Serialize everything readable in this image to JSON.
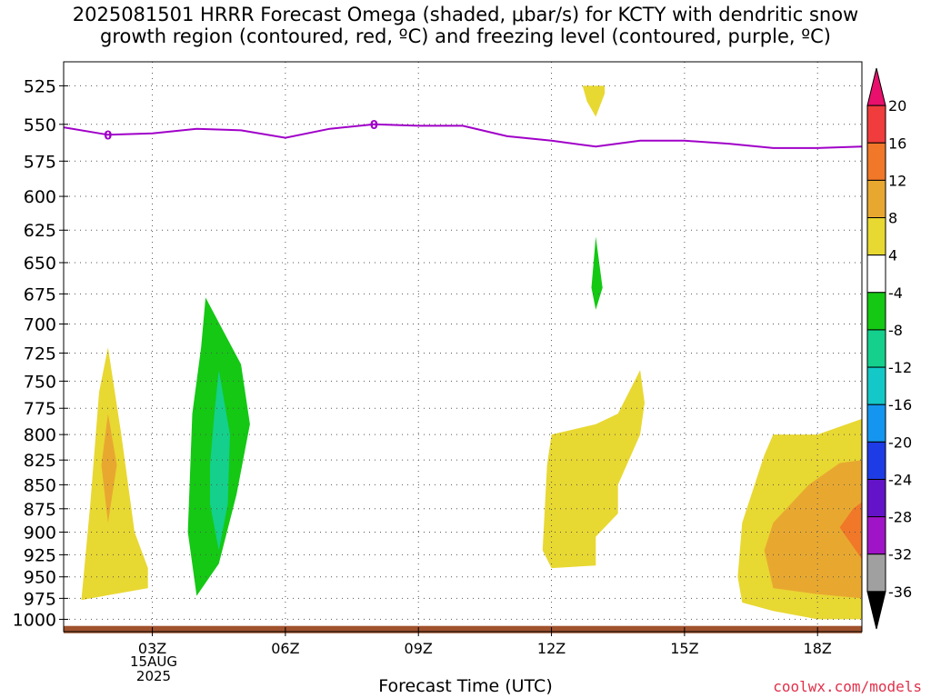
{
  "title": "2025081501 HRRR Forecast Omega (shaded, μbar/s) for KCTY with dendritic snow\ngrowth region (contoured, red, ºC) and freezing level (contoured, purple, ºC)",
  "xlabel": "Forecast Time (UTC)",
  "credit": "coolwx.com/models",
  "date_label": "15AUG\n2025",
  "chart_data": {
    "type": "heatmap",
    "title": "2025081501 HRRR Forecast Omega (shaded, μbar/s) for KCTY with dendritic snow growth region (contoured, red, ºC) and freezing level (contoured, purple, ºC)",
    "xlabel": "Forecast Time (UTC)",
    "ylabel": "",
    "x_ticks": [
      "03Z",
      "06Z",
      "09Z",
      "12Z",
      "15Z",
      "18Z"
    ],
    "x_tick_hours": [
      3,
      6,
      9,
      12,
      15,
      18
    ],
    "xlim_hours": [
      1,
      19
    ],
    "y_ticks": [
      525,
      550,
      575,
      600,
      625,
      650,
      675,
      700,
      725,
      750,
      775,
      800,
      825,
      850,
      875,
      900,
      925,
      950,
      975,
      1000
    ],
    "ylim": [
      510,
      1015
    ],
    "y_scale": "log",
    "grid": true,
    "colorbar": {
      "labels": [
        "20",
        "16",
        "12",
        "8",
        "4",
        "-4",
        "-8",
        "-12",
        "-16",
        "-20",
        "-24",
        "-28",
        "-32",
        "-36"
      ],
      "colors": [
        "#e8106c",
        "#f03c3c",
        "#f07828",
        "#e8a830",
        "#e8d832",
        "#ffffff",
        "#14c814",
        "#14d08c",
        "#14c8c8",
        "#1496f0",
        "#1e3ce6",
        "#6414c8",
        "#a014c8",
        "#a0a0a0",
        "#000000"
      ]
    },
    "freezing_level": {
      "color": "#a000c8",
      "contour_label": "0",
      "hours": [
        1,
        2,
        3,
        4,
        5,
        6,
        7,
        8,
        9,
        10,
        11,
        12,
        13,
        14,
        15,
        16,
        17,
        18,
        19
      ],
      "pressure": [
        552,
        557,
        556,
        553,
        554,
        559,
        553,
        550,
        551,
        551,
        558,
        561,
        565,
        561,
        561,
        563,
        566,
        566,
        565
      ]
    },
    "omega_regions": [
      {
        "omega": 4,
        "color": "#e8d832",
        "points": [
          [
            1.4,
            977
          ],
          [
            1.6,
            870
          ],
          [
            1.8,
            760
          ],
          [
            2.0,
            720
          ],
          [
            2.3,
            800
          ],
          [
            2.6,
            900
          ],
          [
            2.9,
            940
          ],
          [
            2.9,
            963
          ]
        ]
      },
      {
        "omega": 8,
        "color": "#e8a830",
        "points": [
          [
            1.85,
            830
          ],
          [
            2.0,
            780
          ],
          [
            2.2,
            830
          ],
          [
            2.0,
            890
          ]
        ]
      },
      {
        "omega": -4,
        "color": "#14c814",
        "points": [
          [
            3.9,
            780
          ],
          [
            4.1,
            720
          ],
          [
            4.2,
            678
          ],
          [
            5.0,
            735
          ],
          [
            5.2,
            790
          ],
          [
            4.9,
            860
          ],
          [
            4.5,
            935
          ],
          [
            4.0,
            972
          ],
          [
            3.8,
            900
          ]
        ]
      },
      {
        "omega": -8,
        "color": "#14d08c",
        "points": [
          [
            4.3,
            830
          ],
          [
            4.4,
            780
          ],
          [
            4.5,
            740
          ],
          [
            4.75,
            800
          ],
          [
            4.7,
            870
          ],
          [
            4.5,
            920
          ],
          [
            4.3,
            870
          ]
        ]
      },
      {
        "omega": 4,
        "color": "#e8d832",
        "points": [
          [
            12.7,
            525
          ],
          [
            13.2,
            525
          ],
          [
            13.2,
            530
          ],
          [
            13.0,
            545
          ],
          [
            12.8,
            535
          ]
        ]
      },
      {
        "omega": -4,
        "color": "#14c814",
        "points": [
          [
            13.0,
            630
          ],
          [
            13.15,
            670
          ],
          [
            13.0,
            688
          ],
          [
            12.9,
            670
          ]
        ]
      },
      {
        "omega": 4,
        "color": "#e8d832",
        "points": [
          [
            11.8,
            920
          ],
          [
            11.9,
            830
          ],
          [
            12.0,
            800
          ],
          [
            13.0,
            790
          ],
          [
            13.5,
            780
          ],
          [
            14.0,
            740
          ],
          [
            14.1,
            770
          ],
          [
            14.0,
            800
          ],
          [
            13.5,
            850
          ],
          [
            13.5,
            880
          ],
          [
            13.0,
            905
          ],
          [
            13.0,
            937
          ],
          [
            12.0,
            940
          ]
        ]
      },
      {
        "omega": 4,
        "color": "#e8d832",
        "points": [
          [
            16.3,
            980
          ],
          [
            16.2,
            950
          ],
          [
            16.3,
            890
          ],
          [
            16.8,
            820
          ],
          [
            17.0,
            800
          ],
          [
            18.0,
            800
          ],
          [
            19.0,
            785
          ],
          [
            19.0,
            1000
          ],
          [
            18.0,
            1000
          ],
          [
            17.0,
            990
          ]
        ]
      },
      {
        "omega": 8,
        "color": "#e8a830",
        "points": [
          [
            16.8,
            920
          ],
          [
            17.0,
            890
          ],
          [
            17.8,
            850
          ],
          [
            18.5,
            828
          ],
          [
            19.0,
            825
          ],
          [
            19.0,
            975
          ],
          [
            18.0,
            970
          ],
          [
            17.0,
            963
          ]
        ]
      },
      {
        "omega": 12,
        "color": "#f07828",
        "points": [
          [
            18.5,
            895
          ],
          [
            18.8,
            875
          ],
          [
            19.0,
            868
          ],
          [
            19.0,
            930
          ]
        ]
      }
    ],
    "ground_band": {
      "color": "#a0522d"
    }
  }
}
